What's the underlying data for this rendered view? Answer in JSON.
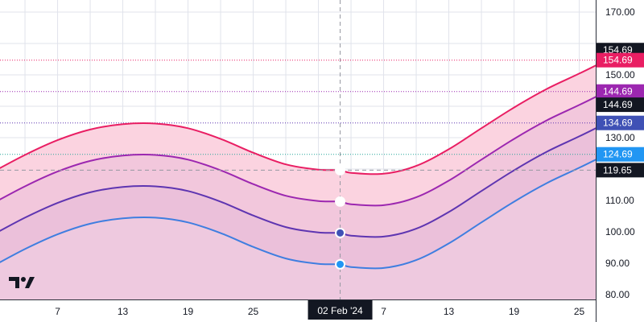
{
  "chart_data": {
    "type": "area",
    "title": "",
    "xlabel": "",
    "ylabel": "",
    "ylim": [
      80,
      172
    ],
    "x_ticks": [
      {
        "label": "7",
        "day": 7
      },
      {
        "label": "13",
        "day": 13
      },
      {
        "label": "19",
        "day": 19
      },
      {
        "label": "25",
        "day": 25
      },
      {
        "label": "7",
        "day": 37
      },
      {
        "label": "13",
        "day": 43
      },
      {
        "label": "19",
        "day": 49
      },
      {
        "label": "25",
        "day": 55
      }
    ],
    "y_ticks": [
      80,
      90,
      100,
      110,
      130,
      150,
      170
    ],
    "y_tick_labels": [
      "80.00",
      "90.00",
      "100.00",
      "110.00",
      "130.00",
      "150.00",
      "170.00"
    ],
    "crosshair": {
      "day": 33,
      "x_label": "02 Feb '24",
      "y_value": 119.65,
      "y_label": "119.65"
    },
    "x_points": [
      1,
      4,
      7,
      10,
      13,
      16,
      19,
      22,
      25,
      28,
      31,
      33,
      34,
      37,
      40,
      43,
      46,
      49,
      52,
      55,
      57.5
    ],
    "series": [
      {
        "values": [
          119.0,
          124.5,
          129.2,
          132.6,
          134.3,
          134.5,
          133.0,
          129.6,
          125.2,
          121.5,
          119.8,
          119.65,
          118.8,
          118.5,
          121.0,
          126.3,
          133.0,
          139.6,
          145.5,
          150.4,
          154.69
        ],
        "color": "#e91e63",
        "label": "154.69",
        "fill": "#fbd3e0"
      },
      {
        "values": [
          109.0,
          114.5,
          119.2,
          122.6,
          124.3,
          124.5,
          123.0,
          119.6,
          115.2,
          111.5,
          109.8,
          109.65,
          108.8,
          108.5,
          111.0,
          116.3,
          123.0,
          129.6,
          135.5,
          140.4,
          144.69
        ],
        "color": "#9c27b0",
        "label": "144.69",
        "fill": "#ebbed9"
      },
      {
        "values": [
          99.0,
          104.5,
          109.2,
          112.6,
          114.3,
          114.5,
          113.0,
          109.6,
          105.2,
          101.5,
          99.8,
          99.65,
          98.8,
          98.5,
          101.0,
          106.3,
          113.0,
          119.6,
          125.5,
          130.4,
          134.69
        ],
        "color": "#5e35b1",
        "label": "134.69",
        "fill": "#e6bad9"
      },
      {
        "values": [
          89.0,
          94.5,
          99.2,
          102.6,
          104.3,
          104.5,
          103.0,
          99.6,
          95.2,
          91.5,
          89.8,
          89.65,
          88.8,
          88.5,
          91.0,
          96.3,
          103.0,
          109.6,
          115.5,
          120.4,
          124.69
        ],
        "color": "#3f7ee0",
        "label": "124.69",
        "fill": "#f0d0e4"
      }
    ],
    "price_lines": [
      {
        "value": 154.69,
        "color": "#e91e63",
        "label": "154.69",
        "badge": "#131722"
      },
      {
        "value": 144.69,
        "color": "#9c27b0",
        "label": "144.69",
        "badge": "#131722"
      },
      {
        "value": 134.69,
        "color": "#5e35b1",
        "label": "134.69",
        "badge": "#131722"
      },
      {
        "value": 124.69,
        "color": "#26a69a",
        "label": "124.69",
        "badge": "#131722"
      }
    ],
    "badges": [
      {
        "value": 154.69,
        "label": "154.69",
        "color": "#e91e63"
      },
      {
        "value": 144.69,
        "label": "144.69",
        "color": "#9c27b0"
      },
      {
        "value": 134.69,
        "label": "134.69",
        "color": "#3f51b5"
      },
      {
        "value": 124.69,
        "label": "124.69",
        "color": "#2196f3"
      }
    ],
    "grid": true,
    "logo": "tradingview-logo"
  }
}
